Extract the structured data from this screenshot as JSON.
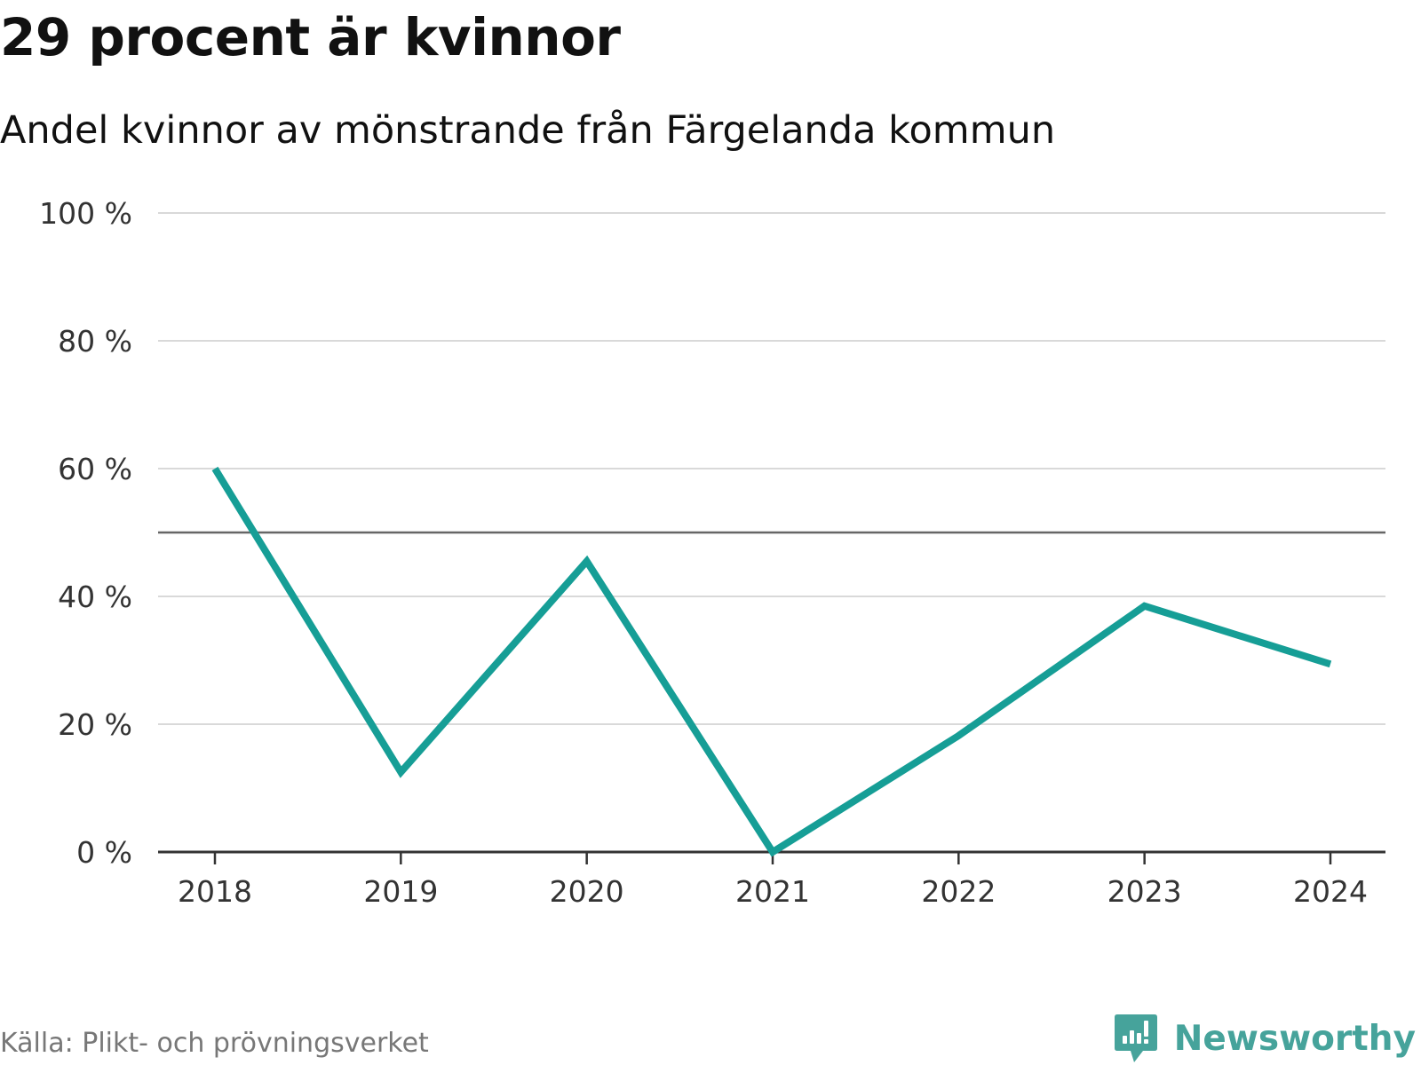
{
  "title": "29 procent är kvinnor",
  "subtitle": "Andel kvinnor av mönstrande från Färgelanda kommun",
  "source": "Källa: Plikt- och prövningsverket",
  "brand": {
    "name": "Newsworthy",
    "icon": "newsworthy-logo-icon",
    "color": "#46a39b"
  },
  "colors": {
    "line": "#169e96",
    "grid": "#d9d9d9",
    "reference_line": "#666666",
    "axis": "#333333"
  },
  "chart_data": {
    "type": "line",
    "title": "29 procent är kvinnor",
    "subtitle": "Andel kvinnor av mönstrande från Färgelanda kommun",
    "x": [
      "2018",
      "2019",
      "2020",
      "2021",
      "2022",
      "2023",
      "2024"
    ],
    "y": [
      60,
      12.5,
      45.5,
      0,
      18.2,
      38.5,
      29.4
    ],
    "ylim": [
      0,
      100
    ],
    "y_ticks": [
      0,
      20,
      40,
      60,
      80,
      100
    ],
    "y_tick_labels": [
      "0 %",
      "20 %",
      "40 %",
      "60 %",
      "80 %",
      "100 %"
    ],
    "reference_line": 50,
    "grid": true,
    "legend": "none"
  }
}
